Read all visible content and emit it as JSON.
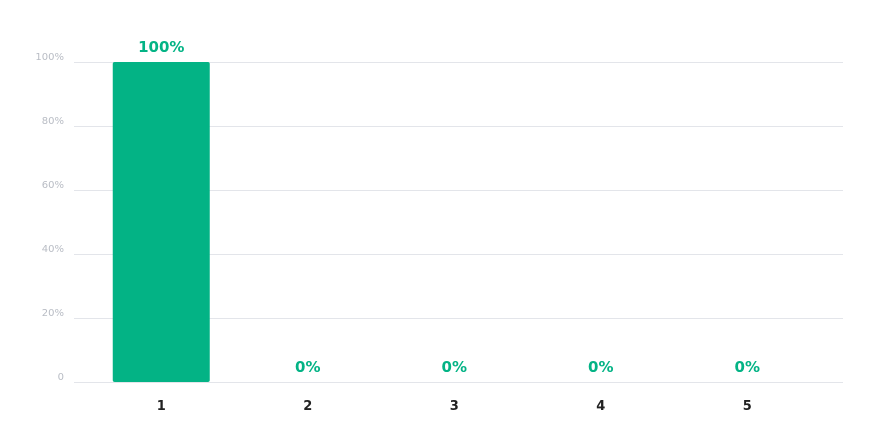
{
  "chart_data": {
    "type": "bar",
    "categories": [
      "1",
      "2",
      "3",
      "4",
      "5"
    ],
    "values": [
      100,
      0,
      0,
      0,
      0
    ],
    "data_labels": [
      "100%",
      "0%",
      "0%",
      "0%",
      "0%"
    ],
    "y_ticks": [
      0,
      20,
      40,
      60,
      80,
      100
    ],
    "y_tick_labels": [
      "0",
      "20%",
      "40%",
      "60%",
      "80%",
      "100%"
    ],
    "ylim": [
      0,
      100
    ],
    "grid": true,
    "title": "",
    "xlabel": "",
    "ylabel": "",
    "colors": {
      "bar": "#03b385",
      "label": "#03b385",
      "grid": "#e3e5ea",
      "tick": "#b8bcc4",
      "category": "#222222"
    }
  }
}
